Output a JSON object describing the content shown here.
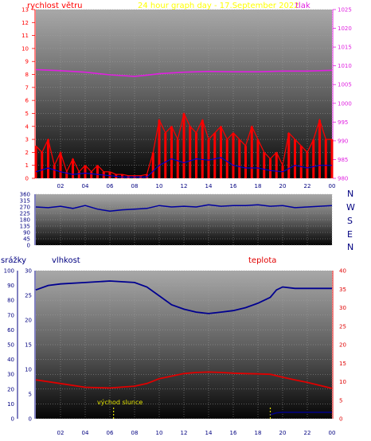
{
  "header": {
    "wind_label": "rychlost větru",
    "graph_title": "24 hour graph day - 17.September 2022",
    "pressure_label": "tlak"
  },
  "direction_panel": {
    "compass_labels": [
      "N",
      "W",
      "S",
      "E",
      "N"
    ]
  },
  "lower_panel": {
    "rain_label": "srážky",
    "humidity_label": "vlhkost",
    "temperature_label": "teplota",
    "sunrise_label": "východ slunce"
  },
  "colors": {
    "wind": "#ff0000",
    "gust": "#0000cc",
    "pressure": "#e020e0",
    "direction": "#0000a0",
    "humidity": "#000090",
    "temperature": "#e00000",
    "rain": "#000080",
    "title": "#ffff00",
    "sun_marker": "#e0e000",
    "tick_left_top": "#ff0000",
    "tick_right_top": "#e020e0",
    "tick_dir": "#000080",
    "tick_right_bottom": "#e00000"
  },
  "chart_data": [
    {
      "type": "line",
      "name": "wind-pressure",
      "title": "24 hour graph day - 17.September 2022",
      "x_tick_labels": [
        "02",
        "04",
        "06",
        "08",
        "10",
        "12",
        "14",
        "16",
        "18",
        "20",
        "22",
        "00"
      ],
      "x_range_hours": [
        0,
        24
      ],
      "left_axis": {
        "label": "rychlost větru",
        "ticks": [
          0,
          1,
          2,
          3,
          4,
          5,
          6,
          7,
          8,
          9,
          10,
          11,
          12,
          13
        ],
        "range": [
          0,
          13
        ]
      },
      "right_axis": {
        "label": "tlak",
        "ticks": [
          980,
          985,
          990,
          995,
          1000,
          1005,
          1010,
          1015,
          1020,
          1025
        ],
        "range": [
          980,
          1025
        ]
      },
      "series": [
        {
          "name": "wind",
          "hours": [
            0,
            0.5,
            1,
            1.5,
            2,
            2.5,
            3,
            3.5,
            4,
            4.5,
            5,
            5.5,
            6,
            6.5,
            7,
            7.5,
            8,
            8.5,
            9,
            9.5,
            10,
            10.5,
            11,
            11.5,
            12,
            12.5,
            13,
            13.5,
            14,
            14.5,
            15,
            15.5,
            16,
            16.5,
            17,
            17.5,
            18,
            18.5,
            19,
            19.5,
            20,
            20.5,
            21,
            21.5,
            22,
            22.5,
            23,
            23.5,
            24
          ],
          "values": [
            2.5,
            2,
            3,
            1,
            2,
            0.5,
            1.5,
            0.5,
            1,
            0.5,
            1,
            0.5,
            0.5,
            0.3,
            0.3,
            0.2,
            0.2,
            0.2,
            0.3,
            2,
            4.5,
            3.5,
            4,
            3,
            5,
            4,
            3.5,
            4.5,
            3,
            3.5,
            4,
            3,
            3.5,
            3,
            2.5,
            4,
            3,
            2,
            1.5,
            2,
            1,
            3.5,
            3,
            2.5,
            2,
            3,
            4.5,
            3,
            3
          ]
        },
        {
          "name": "gust",
          "hours": [
            0,
            1,
            2,
            3,
            4,
            5,
            6,
            7,
            8,
            9,
            10,
            11,
            12,
            13,
            14,
            15,
            16,
            17,
            18,
            19,
            20,
            21,
            22,
            23,
            24
          ],
          "values": [
            0.5,
            0.8,
            0.5,
            0.3,
            0.4,
            0.3,
            0.2,
            0.1,
            0.1,
            0.1,
            1,
            1.5,
            1.2,
            1.5,
            1.4,
            1.6,
            1,
            0.8,
            0.8,
            0.6,
            0.5,
            1,
            0.8,
            1,
            1
          ]
        },
        {
          "name": "pressure",
          "hours": [
            0,
            2,
            4,
            6,
            8,
            9,
            10,
            12,
            14,
            16,
            18,
            20,
            22,
            24
          ],
          "values": [
            1009,
            1008.7,
            1008.3,
            1007.6,
            1007.2,
            1007.5,
            1007.9,
            1008.3,
            1008.5,
            1008.4,
            1008.4,
            1008.6,
            1008.6,
            1008.8
          ]
        }
      ]
    },
    {
      "type": "scatter",
      "name": "wind-direction",
      "x_range_hours": [
        0,
        24
      ],
      "y_ticks": [
        0,
        45,
        90,
        135,
        180,
        225,
        270,
        315,
        360
      ],
      "y_range": [
        0,
        360
      ],
      "series": [
        {
          "name": "direction",
          "hours": [
            0,
            1,
            2,
            3,
            4,
            5,
            6,
            7,
            8,
            9,
            10,
            11,
            12,
            13,
            14,
            15,
            16,
            17,
            18,
            19,
            20,
            21,
            22,
            23,
            24
          ],
          "values": [
            270,
            265,
            275,
            260,
            280,
            255,
            240,
            250,
            255,
            260,
            280,
            270,
            275,
            270,
            285,
            275,
            280,
            280,
            285,
            275,
            280,
            265,
            270,
            275,
            280
          ]
        }
      ]
    },
    {
      "type": "line",
      "name": "rain-humidity-temperature",
      "x_tick_labels": [
        "02",
        "04",
        "06",
        "08",
        "10",
        "12",
        "14",
        "16",
        "18",
        "20",
        "22",
        "00"
      ],
      "x_range_hours": [
        0,
        24
      ],
      "rain_axis": {
        "label": "srážky",
        "ticks": [
          0,
          5,
          10,
          15,
          20,
          25,
          30
        ],
        "range": [
          0,
          30
        ]
      },
      "humidity_axis": {
        "label": "vlhkost",
        "ticks": [
          0,
          10,
          20,
          30,
          40,
          50,
          60,
          70,
          80,
          90,
          100
        ],
        "range": [
          0,
          100
        ]
      },
      "temperature_axis": {
        "label": "teplota",
        "ticks": [
          0,
          5,
          10,
          15,
          20,
          25,
          30,
          35,
          40
        ],
        "range": [
          0,
          40
        ]
      },
      "series": [
        {
          "name": "humidity",
          "hours": [
            0,
            1,
            2,
            4,
            6,
            8,
            9,
            10,
            11,
            12,
            13,
            14,
            15,
            16,
            17,
            18,
            19,
            19.5,
            20,
            21,
            22,
            24
          ],
          "values": [
            87,
            90,
            91,
            92,
            93,
            92,
            89,
            83,
            77,
            74,
            72,
            71,
            72,
            73,
            75,
            78,
            82,
            87,
            89,
            88,
            88,
            88
          ]
        },
        {
          "name": "temperature",
          "hours": [
            0,
            1,
            2,
            4,
            6,
            8,
            9,
            10,
            11,
            12,
            13,
            14,
            15,
            16,
            17,
            18,
            19,
            20,
            21,
            22,
            23,
            24
          ],
          "values": [
            10.5,
            10,
            9.5,
            8.5,
            8.3,
            8.8,
            9.5,
            10.8,
            11.5,
            12.2,
            12.5,
            12.6,
            12.5,
            12.3,
            12.2,
            12.1,
            12,
            11.2,
            10.5,
            9.8,
            9,
            8.2
          ]
        },
        {
          "name": "rain",
          "hours": [
            19,
            19.5,
            20,
            21,
            22,
            23,
            24
          ],
          "values": [
            0.8,
            1.2,
            1.3,
            1.3,
            1.3,
            1.3,
            1.3
          ]
        }
      ],
      "events": [
        {
          "label": "východ slunce",
          "hour": 6.3
        },
        {
          "hour": 19
        }
      ]
    }
  ]
}
